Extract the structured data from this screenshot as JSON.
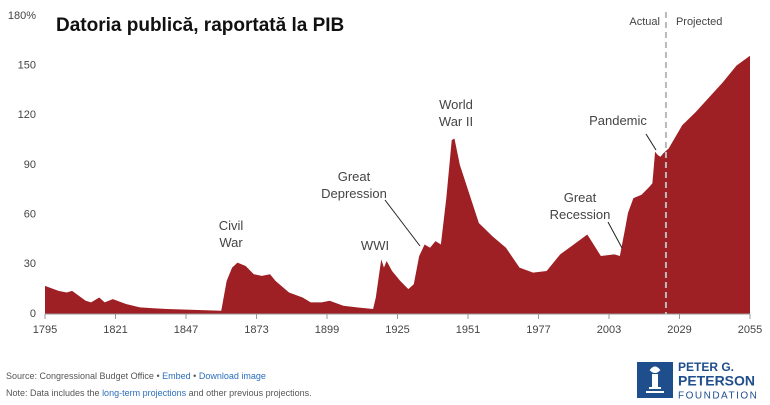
{
  "chart_data": {
    "type": "area",
    "title": "Datoria publică, raportată la PIB",
    "x": [
      1795,
      1800,
      1803,
      1805,
      1810,
      1812,
      1815,
      1817,
      1820,
      1825,
      1830,
      1835,
      1840,
      1850,
      1860,
      1862,
      1864,
      1866,
      1869,
      1872,
      1875,
      1878,
      1880,
      1885,
      1890,
      1893,
      1897,
      1900,
      1905,
      1910,
      1916,
      1917,
      1919,
      1920,
      1921,
      1923,
      1926,
      1929,
      1931,
      1933,
      1935,
      1937,
      1939,
      1941,
      1943,
      1945,
      1946,
      1948,
      1950,
      1955,
      1960,
      1965,
      1970,
      1975,
      1980,
      1985,
      1990,
      1995,
      2000,
      2005,
      2007,
      2009,
      2010,
      2012,
      2015,
      2018,
      2019,
      2020,
      2021,
      2022,
      2023,
      2025,
      2030,
      2035,
      2040,
      2045,
      2050,
      2055
    ],
    "values": [
      17,
      14,
      13,
      14,
      8,
      7,
      10,
      7,
      9,
      6,
      4,
      3.5,
      3,
      2.5,
      2,
      20,
      28,
      31,
      29,
      24,
      23,
      24,
      20,
      13,
      10,
      7,
      7,
      8,
      5,
      4,
      3,
      10,
      33,
      28,
      32,
      26,
      20,
      15,
      18,
      35,
      42,
      40,
      44,
      42,
      70,
      105,
      106,
      90,
      80,
      55,
      47,
      40,
      28,
      25,
      26,
      36,
      42,
      48,
      35,
      36,
      35,
      52,
      61,
      70,
      72,
      77,
      79,
      98,
      96,
      95,
      97,
      100,
      114,
      122,
      131,
      140,
      150,
      156
    ],
    "color": "#9e1f24",
    "xlim": [
      1795,
      2055
    ],
    "xticks": [
      1795,
      1821,
      1847,
      1873,
      1899,
      1925,
      1951,
      1977,
      2003,
      2029,
      2055
    ],
    "ylim": [
      0,
      180
    ],
    "yticks": [
      0,
      30,
      60,
      90,
      120,
      150,
      {
        "value": 180,
        "label": "180%"
      }
    ],
    "grid": false,
    "projection_start": 2024,
    "actual_label": "Actual",
    "projected_label": "Projected",
    "annotations": [
      {
        "lines": [
          "Civil",
          "War"
        ]
      },
      {
        "lines": [
          "WWI"
        ]
      },
      {
        "lines": [
          "Great",
          "Depression"
        ]
      },
      {
        "lines": [
          "World",
          "War II"
        ]
      },
      {
        "lines": [
          "Great",
          "Recession"
        ]
      },
      {
        "lines": [
          "Pandemic"
        ]
      }
    ]
  },
  "footer": {
    "source": "Source: Congressional Budget Office",
    "separator": "•",
    "embed": "Embed",
    "download": "Download image",
    "note_start": "Note: Data includes the ",
    "note_link": "long-term projections",
    "note_end": " and other previous projections."
  },
  "logo": {
    "line1": "PETER G.",
    "line2": "PETERSON",
    "line3": "FOUNDATION"
  }
}
